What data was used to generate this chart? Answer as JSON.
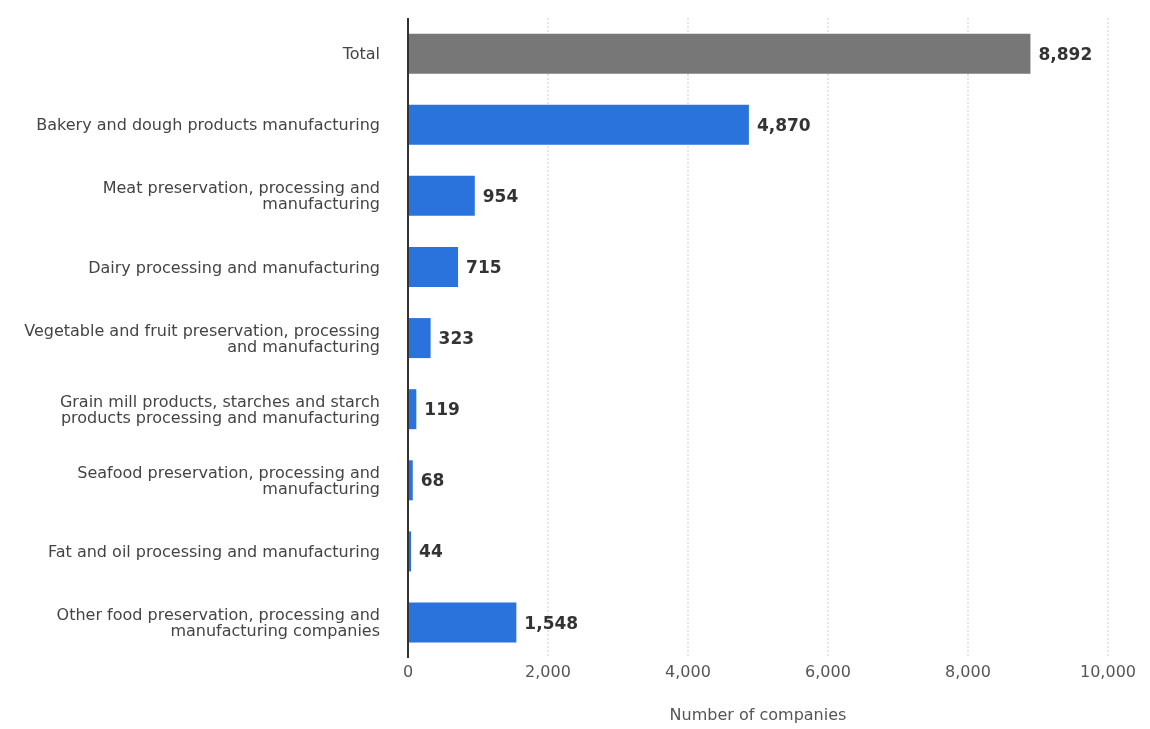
{
  "chart_data": {
    "type": "bar",
    "orientation": "horizontal",
    "xlabel": "Number of companies",
    "categories": [
      "Total",
      "Bakery and dough products manufacturing",
      "Meat preservation, processing and manufacturing",
      "Dairy processing and manufacturing",
      "Vegetable and fruit preservation, processing and manufacturing",
      "Grain mill products, starches and starch products processing and manufacturing",
      "Seafood preservation, processing and manufacturing",
      "Fat and oil processing and manufacturing",
      "Other food preservation, processing and manufacturing companies"
    ],
    "values": [
      8892,
      4870,
      954,
      715,
      323,
      119,
      68,
      44,
      1548
    ],
    "colors": [
      "#777777",
      "#2a72dc",
      "#2a72dc",
      "#2a72dc",
      "#2a72dc",
      "#2a72dc",
      "#2a72dc",
      "#2a72dc",
      "#2a72dc"
    ],
    "value_labels": [
      "8,892",
      "4,870",
      "954",
      "715",
      "323",
      "119",
      "68",
      "44",
      "1,548"
    ],
    "xlim": [
      0,
      10000
    ],
    "xticks": [
      {
        "value": 0,
        "label": "0"
      },
      {
        "value": 2000,
        "label": "2,000"
      },
      {
        "value": 4000,
        "label": "4,000"
      },
      {
        "value": 6000,
        "label": "6,000"
      },
      {
        "value": 8000,
        "label": "8,000"
      },
      {
        "value": 10000,
        "label": "10,000"
      }
    ],
    "grid": "x",
    "legend": false
  }
}
